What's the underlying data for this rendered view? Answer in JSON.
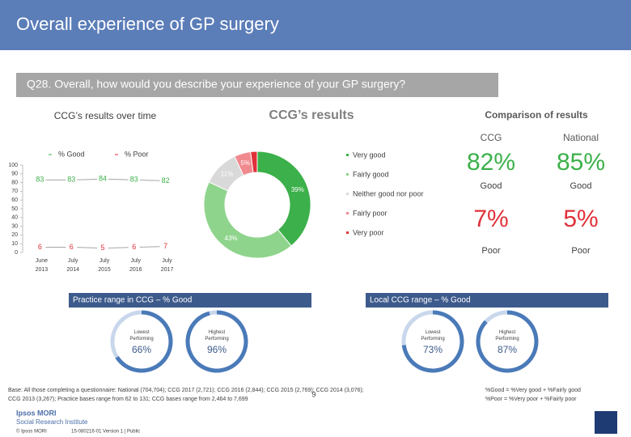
{
  "header": {
    "title": "Overall experience of GP surgery",
    "question": "Q28. Overall, how would you describe your experience of your GP surgery?"
  },
  "chart_data": [
    {
      "type": "line",
      "title": "CCG’s results over time",
      "categories": [
        "June 2013",
        "July 2014",
        "July 2015",
        "July 2016",
        "July 2017"
      ],
      "series": [
        {
          "name": "% Good",
          "color": "#3cb04a",
          "values": [
            83,
            83,
            84,
            83,
            82
          ]
        },
        {
          "name": "% Poor",
          "color": "#e0313a",
          "values": [
            6,
            6,
            5,
            6,
            7
          ]
        }
      ],
      "ylim": [
        0,
        100
      ],
      "yticks": [
        0,
        10,
        20,
        30,
        40,
        50,
        60,
        70,
        80,
        90,
        100
      ]
    },
    {
      "type": "pie",
      "title": "CCG’s results",
      "categories": [
        "Very good",
        "Fairly good",
        "Neither good nor poor",
        "Fairly poor",
        "Very poor"
      ],
      "values": [
        39,
        43,
        11,
        5,
        2
      ],
      "value_labels": [
        "39%",
        "43%",
        "11%",
        "5%",
        null
      ],
      "colors": [
        "#3cb04a",
        "#8fd48c",
        "#d9d9d9",
        "#f08a8f",
        "#e0313a"
      ]
    }
  ],
  "comparison": {
    "title": "Comparison of results",
    "columns": [
      "CCG",
      "National"
    ],
    "rows": [
      {
        "values": [
          "82%",
          "85%"
        ],
        "label": "Good"
      },
      {
        "values": [
          "7%",
          "5%"
        ],
        "label": "Poor"
      }
    ]
  },
  "ranges": [
    {
      "title": "Practice range in CCG – % Good",
      "gauges": [
        {
          "label": "Lowest Performing",
          "value": 66,
          "value_label": "66%"
        },
        {
          "label": "Highest Performing",
          "value": 96,
          "value_label": "96%"
        }
      ]
    },
    {
      "title": "Local CCG range – % Good",
      "gauges": [
        {
          "label": "Lowest Performing",
          "value": 73,
          "value_label": "73%"
        },
        {
          "label": "Highest Performing",
          "value": 87,
          "value_label": "87%"
        }
      ]
    }
  ],
  "footer": {
    "base": [
      "Base: All those completing a questionnaire: National (704,704); CCG 2017 (2,721); CCG 2016 (2,844); CCG 2015 (2,769); CCG 2014 (3,076);",
      "CCG 2013 (3,267); Practice bases range from 62 to 131; CCG bases range from 2,464 to 7,699"
    ],
    "definitions": [
      "%Good = %Very good + %Fairly good",
      "%Poor = %Very poor + %Fairly poor"
    ],
    "page": "9",
    "brand": [
      "Ipsos MORI",
      "Social Research Institute"
    ],
    "copyright": "© Ipsos MORI",
    "job": "15-080216-01 Version 1 | Public"
  }
}
